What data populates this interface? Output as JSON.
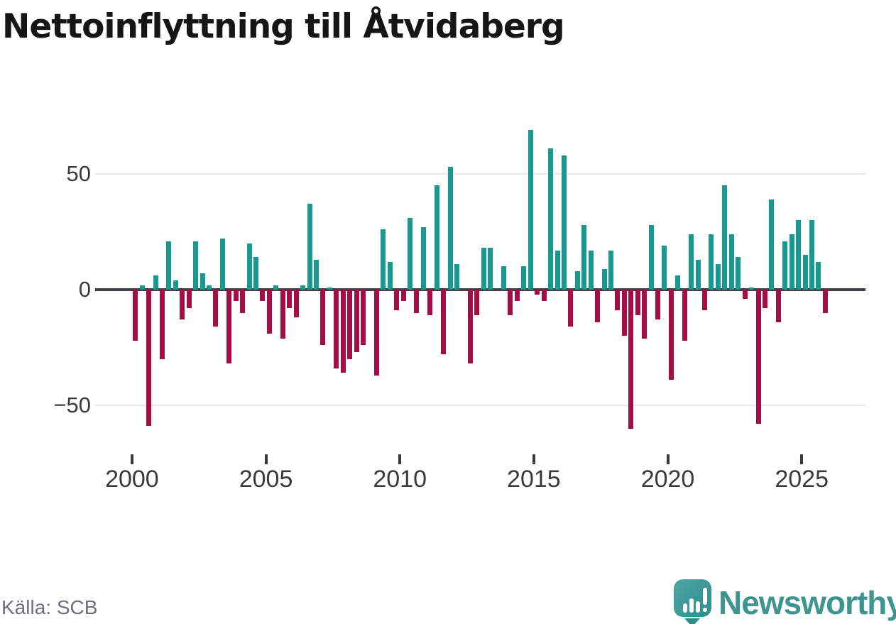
{
  "title": "Nettoinflyttning till Åtvidaberg",
  "source": "Källa: SCB",
  "branding": {
    "wordmark": "Newsworthy",
    "logo_color": "#3e9590"
  },
  "chart_data": {
    "type": "bar",
    "title": "Nettoinflyttning till Åtvidaberg",
    "period": "quarterly",
    "start_period": "2000 Q1",
    "end_period": "2025 Q4",
    "x_tick_labels": [
      "2000",
      "2005",
      "2010",
      "2015",
      "2020",
      "2025"
    ],
    "y_ticks": [
      50,
      0,
      -50
    ],
    "y_tick_labels": [
      "50",
      "0",
      "−50"
    ],
    "ylim": [
      -65,
      73
    ],
    "grid": "horizontal-only",
    "legend": "none",
    "colors": {
      "positive": "#18998f",
      "negative": "#a50d45"
    },
    "series": [
      {
        "name": "Nettoinflyttning",
        "values": [
          -22,
          2,
          -59,
          6,
          -30,
          21,
          4,
          -13,
          -8,
          21,
          7,
          2,
          -16,
          22,
          -32,
          -5,
          -10,
          20,
          14,
          -5,
          -19,
          2,
          -21,
          -8,
          -12,
          2,
          37,
          13,
          -24,
          1,
          -34,
          -36,
          -30,
          -27,
          -24,
          0,
          -37,
          26,
          12,
          -9,
          -5,
          31,
          -10,
          27,
          -11,
          45,
          -28,
          53,
          11,
          0,
          -32,
          -11,
          18,
          18,
          0,
          10,
          -11,
          -5,
          10,
          69,
          -2,
          -5,
          61,
          17,
          58,
          -16,
          8,
          28,
          17,
          -14,
          9,
          17,
          -9,
          -20,
          -60,
          -11,
          -21,
          28,
          -13,
          19,
          -39,
          6,
          -22,
          24,
          13,
          -9,
          24,
          11,
          45,
          24,
          14,
          -4,
          1,
          -58,
          -8,
          39,
          -14,
          21,
          24,
          30,
          15,
          30,
          12,
          -10
        ]
      }
    ]
  }
}
